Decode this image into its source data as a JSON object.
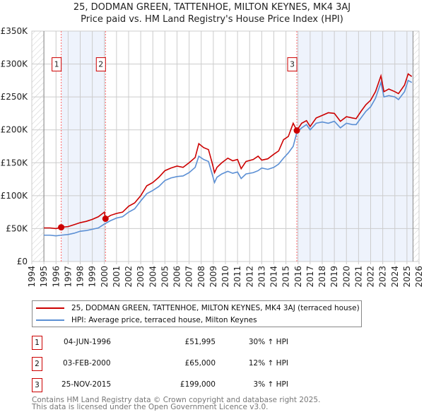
{
  "title_line1": "25, DODMAN GREEN, TATTENHOE, MILTON KEYNES, MK4 3AJ",
  "title_line2": "Price paid vs. HM Land Registry's House Price Index (HPI)",
  "chart_data": {
    "type": "line",
    "title": "25, DODMAN GREEN, TATTENHOE, MILTON KEYNES, MK4 3AJ — Price paid vs. HM Land Registry's House Price Index (HPI)",
    "xlim": [
      1994,
      2026
    ],
    "ylim": [
      0,
      350000
    ],
    "y_ticks": [
      0,
      50000,
      100000,
      150000,
      200000,
      250000,
      300000,
      350000
    ],
    "y_tick_labels": [
      "£0",
      "£50K",
      "£100K",
      "£150K",
      "£200K",
      "£250K",
      "£300K",
      "£350K"
    ],
    "x_ticks": [
      "1994",
      "1995",
      "1996",
      "1997",
      "1998",
      "1999",
      "2000",
      "2001",
      "2002",
      "2003",
      "2004",
      "2005",
      "2006",
      "2007",
      "2008",
      "2009",
      "2010",
      "2011",
      "2012",
      "2013",
      "2014",
      "2015",
      "2016",
      "2017",
      "2018",
      "2019",
      "2020",
      "2021",
      "2022",
      "2023",
      "2024",
      "2025",
      "2026"
    ],
    "grid": true,
    "colors": {
      "property": "#cc0000",
      "hpi": "#5b8fd4",
      "band": "#eef3fc"
    },
    "series": [
      {
        "name": "25, DODMAN GREEN, TATTENHOE, MILTON KEYNES, MK4 3AJ (terraced house)",
        "x": [
          1995,
          1995.5,
          1996,
          1996.43,
          1997,
          1997.5,
          1998,
          1998.5,
          1999,
          1999.5,
          2000,
          2000.08,
          2000.5,
          2001,
          2001.5,
          2002,
          2002.5,
          2003,
          2003.5,
          2004,
          2004.5,
          2005,
          2005.5,
          2006,
          2006.5,
          2007,
          2007.5,
          2007.8,
          2008.2,
          2008.6,
          2008.9,
          2009.1,
          2009.3,
          2009.7,
          2010.2,
          2010.6,
          2011,
          2011.3,
          2011.7,
          2012.3,
          2012.7,
          2013,
          2013.5,
          2014,
          2014.4,
          2014.8,
          2015.2,
          2015.6,
          2015.9,
          2016.3,
          2016.7,
          2017,
          2017.5,
          2018,
          2018.5,
          2019,
          2019.5,
          2020,
          2020.5,
          2020.8,
          2021.2,
          2021.6,
          2022,
          2022.4,
          2022.85,
          2023.1,
          2023.5,
          2024,
          2024.3,
          2024.8,
          2025.1,
          2025.4
        ],
        "y": [
          51000,
          51000,
          50000,
          51995,
          53000,
          56000,
          59000,
          61000,
          64000,
          68000,
          75000,
          65000,
          70000,
          73000,
          75000,
          84000,
          89000,
          100000,
          115000,
          120000,
          128000,
          138000,
          142000,
          145000,
          143000,
          150000,
          158000,
          179000,
          173000,
          170000,
          150000,
          135000,
          143000,
          150000,
          157000,
          153000,
          155000,
          141000,
          152000,
          155000,
          160000,
          154000,
          156000,
          163000,
          168000,
          185000,
          190000,
          210000,
          199000,
          210000,
          214000,
          205000,
          218000,
          222000,
          226000,
          225000,
          213000,
          220000,
          218000,
          217000,
          228000,
          238000,
          245000,
          258000,
          282000,
          258000,
          262000,
          258000,
          255000,
          268000,
          285000,
          281000
        ]
      },
      {
        "name": "HPI: Average price, terraced house, Milton Keynes",
        "x": [
          1995,
          1995.5,
          1996,
          1996.43,
          1997,
          1997.5,
          1998,
          1998.5,
          1999,
          1999.5,
          2000,
          2000.5,
          2001,
          2001.5,
          2002,
          2002.5,
          2003,
          2003.5,
          2004,
          2004.5,
          2005,
          2005.5,
          2006,
          2006.5,
          2007,
          2007.5,
          2007.8,
          2008.2,
          2008.6,
          2008.9,
          2009.1,
          2009.3,
          2009.7,
          2010.2,
          2010.6,
          2011,
          2011.3,
          2011.7,
          2012.3,
          2012.7,
          2013,
          2013.5,
          2014,
          2014.4,
          2014.8,
          2015.2,
          2015.6,
          2015.9,
          2016.3,
          2016.7,
          2017,
          2017.5,
          2018,
          2018.5,
          2019,
          2019.5,
          2020,
          2020.5,
          2020.8,
          2021.2,
          2021.6,
          2022,
          2022.4,
          2022.85,
          2023.1,
          2023.5,
          2024,
          2024.3,
          2024.8,
          2025.1,
          2025.4
        ],
        "y": [
          40000,
          40000,
          39000,
          40000,
          41000,
          43000,
          46000,
          47000,
          49000,
          51000,
          57000,
          62000,
          66000,
          68000,
          75000,
          80000,
          92000,
          103000,
          108000,
          114000,
          123000,
          127000,
          129000,
          130000,
          135000,
          143000,
          160000,
          155000,
          152000,
          133000,
          120000,
          128000,
          133000,
          137000,
          134000,
          136000,
          126000,
          133000,
          135000,
          138000,
          142000,
          140000,
          143000,
          148000,
          157000,
          165000,
          175000,
          196000,
          203000,
          208000,
          200000,
          210000,
          212000,
          210000,
          213000,
          203000,
          210000,
          208000,
          208000,
          218000,
          228000,
          235000,
          248000,
          272000,
          250000,
          252000,
          250000,
          246000,
          258000,
          275000,
          272000
        ]
      }
    ],
    "sales": [
      {
        "id": "1",
        "x": 1996.43,
        "price": 51995
      },
      {
        "id": "2",
        "x": 2000.09,
        "price": 65000
      },
      {
        "id": "3",
        "x": 2015.9,
        "price": 199000
      }
    ],
    "hatched_ranges": [
      [
        1994,
        1995
      ],
      [
        2025.5,
        2026
      ]
    ],
    "shaded_ranges": [
      [
        1996.43,
        2000.09
      ],
      [
        2015.9,
        2025.5
      ]
    ]
  },
  "legend": {
    "property": "25, DODMAN GREEN, TATTENHOE, MILTON KEYNES, MK4 3AJ (terraced house)",
    "hpi": "HPI: Average price, terraced house, Milton Keynes"
  },
  "transactions": [
    {
      "id": "1",
      "date": "04-JUN-1996",
      "price": "£51,995",
      "hpi": "30% ↑ HPI"
    },
    {
      "id": "2",
      "date": "03-FEB-2000",
      "price": "£65,000",
      "hpi": "12% ↑ HPI"
    },
    {
      "id": "3",
      "date": "25-NOV-2015",
      "price": "£199,000",
      "hpi": "3% ↑ HPI"
    }
  ],
  "footer": {
    "line1": "Contains HM Land Registry data © Crown copyright and database right 2025.",
    "line2": "This data is licensed under the Open Government Licence v3.0."
  }
}
